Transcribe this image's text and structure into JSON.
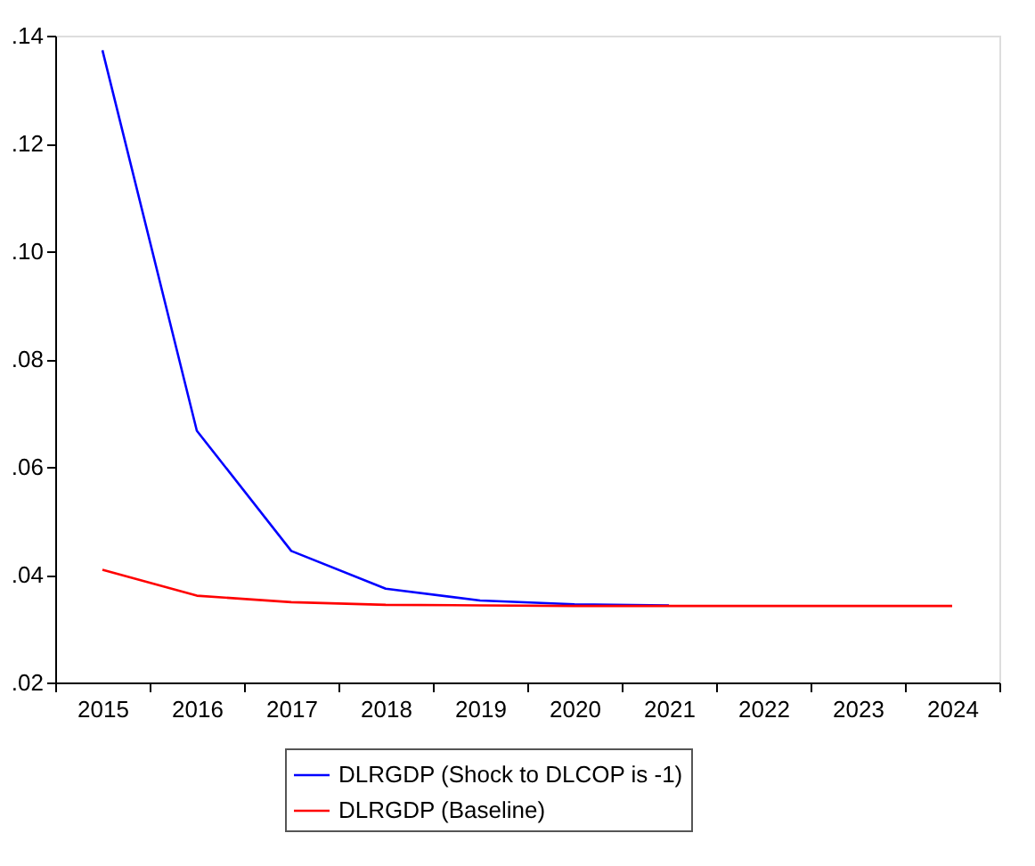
{
  "chart_data": {
    "type": "line",
    "categories": [
      "2015",
      "2016",
      "2017",
      "2018",
      "2019",
      "2020",
      "2021",
      "2022",
      "2023",
      "2024"
    ],
    "series": [
      {
        "name": "DLRGDP (Shock to DLCOP is -1)",
        "color": "#0000ff",
        "values": [
          0.1373,
          0.0667,
          0.0444,
          0.0374,
          0.0352,
          0.0345,
          0.0343,
          null,
          null,
          null
        ]
      },
      {
        "name": "DLRGDP (Baseline)",
        "color": "#ff0000",
        "values": [
          0.0409,
          0.0361,
          0.0349,
          0.0344,
          0.0343,
          0.0342,
          0.0342,
          0.0342,
          0.0342,
          0.0342
        ]
      }
    ],
    "ylim": [
      0.02,
      0.14
    ],
    "yticks": [
      {
        "value": 0.02,
        "label": ".02"
      },
      {
        "value": 0.04,
        "label": ".04"
      },
      {
        "value": 0.06,
        "label": ".06"
      },
      {
        "value": 0.08,
        "label": ".08"
      },
      {
        "value": 0.1,
        "label": ".10"
      },
      {
        "value": 0.12,
        "label": ".12"
      },
      {
        "value": 0.14,
        "label": ".14"
      }
    ],
    "grid": false,
    "legend": "bottom",
    "marker": "none",
    "line_style": "solid"
  }
}
